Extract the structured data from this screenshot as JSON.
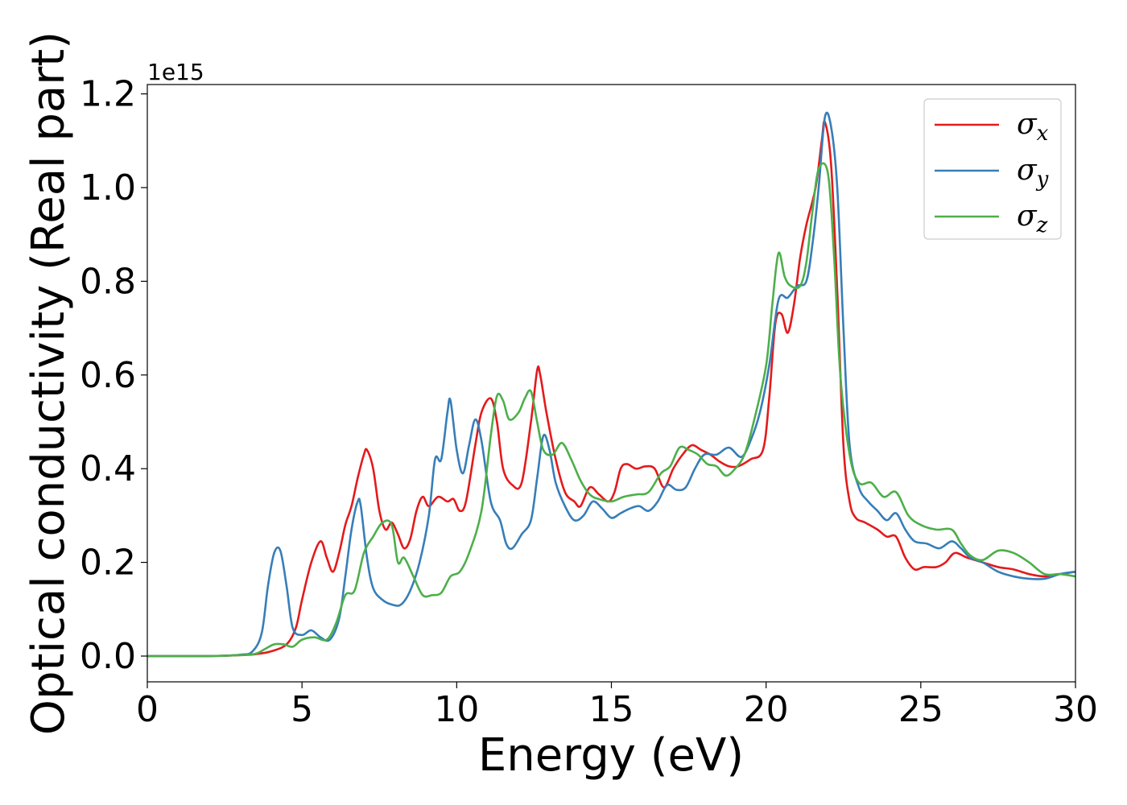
{
  "chart_data": {
    "type": "line",
    "xlabel": "Energy (eV)",
    "ylabel": "Optical conductivity (Real part)",
    "y_offset_label": "1e15",
    "xlim": [
      0,
      30
    ],
    "ylim": [
      -0.055,
      1.22
    ],
    "x_ticks": [
      0,
      5,
      10,
      15,
      20,
      25,
      30
    ],
    "y_ticks": [
      0.0,
      0.2,
      0.4,
      0.6,
      0.8,
      1.0,
      1.2
    ],
    "x_tick_labels": [
      "0",
      "5",
      "10",
      "15",
      "20",
      "25",
      "30"
    ],
    "y_tick_labels": [
      "0.0",
      "0.2",
      "0.4",
      "0.6",
      "0.8",
      "1.0",
      "1.2"
    ],
    "grid": false,
    "legend_position": "top-right",
    "series": [
      {
        "name": "σx",
        "name_base": "σ",
        "name_sub": "x",
        "color": "#e41a1c",
        "points": [
          [
            0,
            0
          ],
          [
            2,
            0
          ],
          [
            3,
            0.002
          ],
          [
            3.5,
            0.004
          ],
          [
            4,
            0.01
          ],
          [
            4.5,
            0.025
          ],
          [
            4.8,
            0.06
          ],
          [
            5,
            0.12
          ],
          [
            5.3,
            0.2
          ],
          [
            5.6,
            0.245
          ],
          [
            5.8,
            0.21
          ],
          [
            6,
            0.18
          ],
          [
            6.2,
            0.22
          ],
          [
            6.4,
            0.28
          ],
          [
            6.6,
            0.32
          ],
          [
            6.8,
            0.38
          ],
          [
            7,
            0.43
          ],
          [
            7.1,
            0.44
          ],
          [
            7.3,
            0.4
          ],
          [
            7.5,
            0.31
          ],
          [
            7.7,
            0.27
          ],
          [
            7.9,
            0.285
          ],
          [
            8.1,
            0.26
          ],
          [
            8.3,
            0.23
          ],
          [
            8.5,
            0.25
          ],
          [
            8.7,
            0.31
          ],
          [
            8.9,
            0.34
          ],
          [
            9.1,
            0.32
          ],
          [
            9.4,
            0.34
          ],
          [
            9.7,
            0.33
          ],
          [
            9.9,
            0.335
          ],
          [
            10.1,
            0.31
          ],
          [
            10.3,
            0.33
          ],
          [
            10.6,
            0.45
          ],
          [
            10.8,
            0.52
          ],
          [
            11.1,
            0.55
          ],
          [
            11.3,
            0.5
          ],
          [
            11.5,
            0.4
          ],
          [
            11.8,
            0.365
          ],
          [
            12.1,
            0.37
          ],
          [
            12.4,
            0.5
          ],
          [
            12.6,
            0.61
          ],
          [
            12.7,
            0.6
          ],
          [
            12.9,
            0.52
          ],
          [
            13.2,
            0.42
          ],
          [
            13.5,
            0.35
          ],
          [
            13.8,
            0.33
          ],
          [
            14,
            0.32
          ],
          [
            14.3,
            0.36
          ],
          [
            14.6,
            0.345
          ],
          [
            14.9,
            0.33
          ],
          [
            15.1,
            0.35
          ],
          [
            15.3,
            0.4
          ],
          [
            15.5,
            0.41
          ],
          [
            15.8,
            0.4
          ],
          [
            16.1,
            0.405
          ],
          [
            16.4,
            0.4
          ],
          [
            16.7,
            0.36
          ],
          [
            17,
            0.4
          ],
          [
            17.3,
            0.43
          ],
          [
            17.6,
            0.45
          ],
          [
            17.9,
            0.44
          ],
          [
            18.2,
            0.43
          ],
          [
            18.5,
            0.415
          ],
          [
            18.8,
            0.405
          ],
          [
            19.1,
            0.405
          ],
          [
            19.5,
            0.42
          ],
          [
            19.9,
            0.44
          ],
          [
            20.1,
            0.55
          ],
          [
            20.3,
            0.71
          ],
          [
            20.5,
            0.73
          ],
          [
            20.7,
            0.69
          ],
          [
            20.9,
            0.75
          ],
          [
            21.1,
            0.85
          ],
          [
            21.3,
            0.92
          ],
          [
            21.6,
            1.0
          ],
          [
            21.8,
            1.1
          ],
          [
            21.9,
            1.14
          ],
          [
            22.1,
            1.05
          ],
          [
            22.3,
            0.78
          ],
          [
            22.5,
            0.45
          ],
          [
            22.7,
            0.33
          ],
          [
            22.9,
            0.295
          ],
          [
            23.2,
            0.285
          ],
          [
            23.6,
            0.27
          ],
          [
            23.9,
            0.255
          ],
          [
            24.2,
            0.255
          ],
          [
            24.5,
            0.21
          ],
          [
            24.8,
            0.185
          ],
          [
            25.1,
            0.19
          ],
          [
            25.5,
            0.19
          ],
          [
            25.8,
            0.2
          ],
          [
            26.1,
            0.22
          ],
          [
            26.5,
            0.21
          ],
          [
            27,
            0.2
          ],
          [
            27.5,
            0.19
          ],
          [
            28,
            0.185
          ],
          [
            28.5,
            0.175
          ],
          [
            29,
            0.17
          ],
          [
            29.5,
            0.175
          ],
          [
            30,
            0.18
          ]
        ]
      },
      {
        "name": "σy",
        "name_base": "σ",
        "name_sub": "y",
        "color": "#377eb8",
        "points": [
          [
            0,
            0
          ],
          [
            2,
            0
          ],
          [
            3,
            0.003
          ],
          [
            3.4,
            0.01
          ],
          [
            3.7,
            0.05
          ],
          [
            3.9,
            0.15
          ],
          [
            4.1,
            0.22
          ],
          [
            4.3,
            0.225
          ],
          [
            4.5,
            0.15
          ],
          [
            4.7,
            0.06
          ],
          [
            5,
            0.045
          ],
          [
            5.3,
            0.055
          ],
          [
            5.6,
            0.04
          ],
          [
            5.9,
            0.035
          ],
          [
            6.2,
            0.08
          ],
          [
            6.4,
            0.17
          ],
          [
            6.6,
            0.27
          ],
          [
            6.8,
            0.33
          ],
          [
            6.9,
            0.32
          ],
          [
            7.1,
            0.21
          ],
          [
            7.3,
            0.145
          ],
          [
            7.6,
            0.12
          ],
          [
            7.9,
            0.11
          ],
          [
            8.2,
            0.11
          ],
          [
            8.5,
            0.14
          ],
          [
            8.8,
            0.2
          ],
          [
            9.1,
            0.3
          ],
          [
            9.3,
            0.42
          ],
          [
            9.5,
            0.42
          ],
          [
            9.7,
            0.52
          ],
          [
            9.8,
            0.545
          ],
          [
            10,
            0.44
          ],
          [
            10.2,
            0.39
          ],
          [
            10.4,
            0.45
          ],
          [
            10.6,
            0.505
          ],
          [
            10.8,
            0.46
          ],
          [
            11.1,
            0.33
          ],
          [
            11.4,
            0.29
          ],
          [
            11.6,
            0.24
          ],
          [
            11.8,
            0.23
          ],
          [
            12.1,
            0.26
          ],
          [
            12.4,
            0.29
          ],
          [
            12.6,
            0.38
          ],
          [
            12.8,
            0.47
          ],
          [
            13,
            0.44
          ],
          [
            13.2,
            0.37
          ],
          [
            13.5,
            0.32
          ],
          [
            13.8,
            0.29
          ],
          [
            14.1,
            0.3
          ],
          [
            14.4,
            0.33
          ],
          [
            14.7,
            0.315
          ],
          [
            15,
            0.295
          ],
          [
            15.3,
            0.305
          ],
          [
            15.6,
            0.315
          ],
          [
            15.9,
            0.32
          ],
          [
            16.2,
            0.31
          ],
          [
            16.5,
            0.33
          ],
          [
            16.8,
            0.365
          ],
          [
            17.1,
            0.355
          ],
          [
            17.4,
            0.36
          ],
          [
            17.7,
            0.4
          ],
          [
            18,
            0.43
          ],
          [
            18.4,
            0.43
          ],
          [
            18.8,
            0.445
          ],
          [
            19.2,
            0.425
          ],
          [
            19.5,
            0.46
          ],
          [
            19.8,
            0.52
          ],
          [
            20.1,
            0.62
          ],
          [
            20.4,
            0.76
          ],
          [
            20.7,
            0.765
          ],
          [
            21,
            0.79
          ],
          [
            21.3,
            0.8
          ],
          [
            21.5,
            0.88
          ],
          [
            21.7,
            1.0
          ],
          [
            21.9,
            1.15
          ],
          [
            22.1,
            1.13
          ],
          [
            22.3,
            1.0
          ],
          [
            22.5,
            0.7
          ],
          [
            22.7,
            0.45
          ],
          [
            23,
            0.36
          ],
          [
            23.3,
            0.33
          ],
          [
            23.6,
            0.31
          ],
          [
            23.9,
            0.29
          ],
          [
            24.2,
            0.305
          ],
          [
            24.5,
            0.27
          ],
          [
            24.8,
            0.245
          ],
          [
            25.2,
            0.24
          ],
          [
            25.6,
            0.23
          ],
          [
            26,
            0.245
          ],
          [
            26.3,
            0.23
          ],
          [
            26.6,
            0.21
          ],
          [
            27,
            0.2
          ],
          [
            27.5,
            0.18
          ],
          [
            28,
            0.17
          ],
          [
            28.5,
            0.165
          ],
          [
            29,
            0.165
          ],
          [
            29.5,
            0.175
          ],
          [
            30,
            0.18
          ]
        ]
      },
      {
        "name": "σz",
        "name_base": "σ",
        "name_sub": "z",
        "color": "#4daf4a",
        "points": [
          [
            0,
            0
          ],
          [
            2,
            0
          ],
          [
            3,
            0.002
          ],
          [
            3.5,
            0.005
          ],
          [
            3.8,
            0.015
          ],
          [
            4.1,
            0.025
          ],
          [
            4.4,
            0.025
          ],
          [
            4.7,
            0.02
          ],
          [
            5,
            0.035
          ],
          [
            5.4,
            0.04
          ],
          [
            5.8,
            0.035
          ],
          [
            6.1,
            0.07
          ],
          [
            6.4,
            0.13
          ],
          [
            6.7,
            0.14
          ],
          [
            7,
            0.22
          ],
          [
            7.3,
            0.255
          ],
          [
            7.6,
            0.285
          ],
          [
            7.9,
            0.28
          ],
          [
            8.1,
            0.2
          ],
          [
            8.3,
            0.21
          ],
          [
            8.6,
            0.17
          ],
          [
            8.9,
            0.13
          ],
          [
            9.2,
            0.13
          ],
          [
            9.5,
            0.135
          ],
          [
            9.8,
            0.17
          ],
          [
            10.1,
            0.18
          ],
          [
            10.4,
            0.22
          ],
          [
            10.8,
            0.31
          ],
          [
            11.1,
            0.47
          ],
          [
            11.3,
            0.555
          ],
          [
            11.5,
            0.545
          ],
          [
            11.7,
            0.505
          ],
          [
            12,
            0.52
          ],
          [
            12.2,
            0.55
          ],
          [
            12.4,
            0.565
          ],
          [
            12.6,
            0.5
          ],
          [
            12.8,
            0.44
          ],
          [
            13.1,
            0.43
          ],
          [
            13.4,
            0.455
          ],
          [
            13.7,
            0.42
          ],
          [
            14,
            0.375
          ],
          [
            14.3,
            0.345
          ],
          [
            14.6,
            0.335
          ],
          [
            15,
            0.33
          ],
          [
            15.4,
            0.34
          ],
          [
            15.8,
            0.345
          ],
          [
            16.2,
            0.35
          ],
          [
            16.6,
            0.39
          ],
          [
            16.9,
            0.405
          ],
          [
            17.2,
            0.445
          ],
          [
            17.5,
            0.44
          ],
          [
            17.8,
            0.43
          ],
          [
            18.1,
            0.41
          ],
          [
            18.4,
            0.405
          ],
          [
            18.7,
            0.385
          ],
          [
            19,
            0.4
          ],
          [
            19.3,
            0.43
          ],
          [
            19.6,
            0.5
          ],
          [
            20,
            0.62
          ],
          [
            20.2,
            0.75
          ],
          [
            20.4,
            0.86
          ],
          [
            20.6,
            0.81
          ],
          [
            20.8,
            0.79
          ],
          [
            21.1,
            0.79
          ],
          [
            21.3,
            0.84
          ],
          [
            21.5,
            0.95
          ],
          [
            21.7,
            1.04
          ],
          [
            22,
            1.03
          ],
          [
            22.2,
            0.85
          ],
          [
            22.4,
            0.6
          ],
          [
            22.7,
            0.43
          ],
          [
            23,
            0.37
          ],
          [
            23.4,
            0.37
          ],
          [
            23.8,
            0.34
          ],
          [
            24.2,
            0.35
          ],
          [
            24.6,
            0.3
          ],
          [
            25,
            0.28
          ],
          [
            25.5,
            0.27
          ],
          [
            26,
            0.27
          ],
          [
            26.3,
            0.24
          ],
          [
            26.6,
            0.215
          ],
          [
            27,
            0.205
          ],
          [
            27.5,
            0.225
          ],
          [
            28,
            0.22
          ],
          [
            28.5,
            0.2
          ],
          [
            29,
            0.175
          ],
          [
            29.5,
            0.175
          ],
          [
            30,
            0.17
          ]
        ]
      }
    ]
  }
}
